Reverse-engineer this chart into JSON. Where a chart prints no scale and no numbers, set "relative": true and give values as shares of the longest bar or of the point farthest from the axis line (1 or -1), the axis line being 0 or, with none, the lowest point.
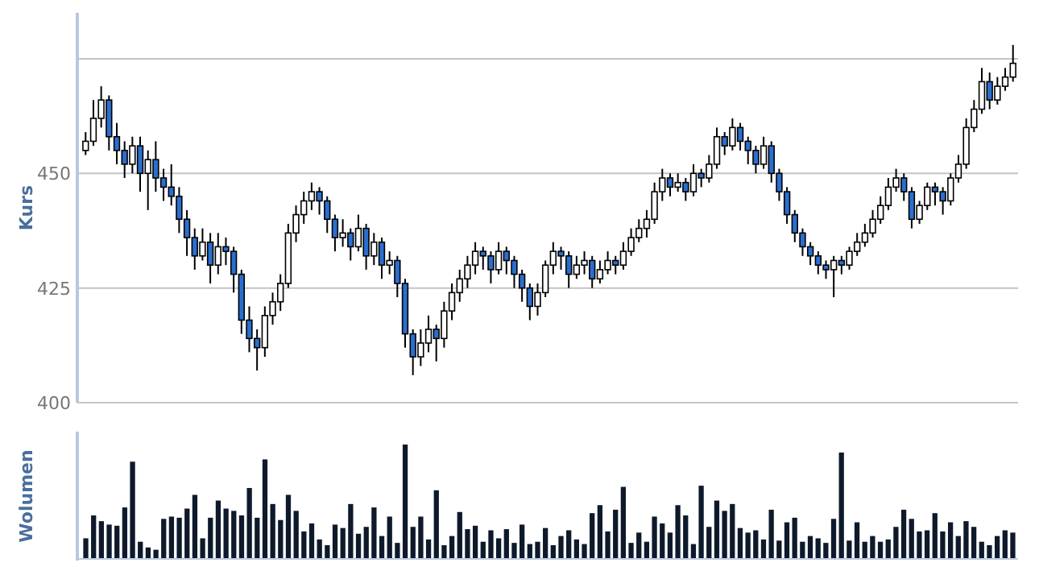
{
  "chart_data": [
    {
      "type": "candlestick",
      "ylabel": "Kurs",
      "categories": [
        null,
        null,
        null,
        null,
        null,
        null,
        null,
        null,
        null,
        null,
        null,
        null,
        null,
        null,
        null,
        null,
        null,
        null,
        null,
        null,
        null,
        null,
        null,
        null,
        null,
        null,
        null,
        null,
        null,
        null,
        null,
        null,
        null,
        null,
        null,
        null,
        null,
        null,
        null,
        null,
        null,
        null,
        null,
        null,
        null,
        null,
        null,
        null,
        null,
        null,
        null,
        null,
        null,
        null,
        null,
        null,
        null,
        null,
        null,
        null,
        null,
        null,
        null,
        null,
        null,
        null,
        null,
        null,
        null,
        null,
        null,
        null,
        null,
        null,
        null,
        null,
        null,
        null,
        null,
        null,
        null,
        null,
        null,
        null,
        null,
        null,
        null,
        null,
        null,
        null,
        null,
        null,
        null,
        null,
        null,
        null,
        null,
        null,
        null,
        null,
        null,
        null,
        null,
        null,
        null,
        null,
        null,
        null,
        null,
        null,
        null,
        null,
        null,
        null,
        null,
        null,
        null,
        null,
        null,
        null
      ],
      "colors": [
        "#ffffff",
        "#ffffff",
        "#ffffff",
        "#2a6fcf",
        "#2a6fcf",
        "#2a6fcf",
        "#ffffff",
        "#2a6fcf",
        "#ffffff",
        "#2a6fcf",
        "#2a6fcf",
        "#2a6fcf",
        "#2a6fcf",
        "#2a6fcf",
        "#2a6fcf",
        "#ffffff",
        "#2a6fcf",
        "#ffffff",
        "#2a6fcf",
        "#2a6fcf",
        "#2a6fcf",
        "#2a6fcf",
        "#2a6fcf",
        "#ffffff",
        "#ffffff",
        "#ffffff",
        "#ffffff",
        "#ffffff",
        "#ffffff",
        "#ffffff",
        "#2a6fcf",
        "#2a6fcf",
        "#2a6fcf",
        "#ffffff",
        "#2a6fcf",
        "#ffffff",
        "#2a6fcf",
        "#ffffff",
        "#2a6fcf",
        "#ffffff",
        "#2a6fcf",
        "#2a6fcf",
        "#2a6fcf",
        "#ffffff",
        "#ffffff",
        "#2a6fcf",
        "#ffffff",
        "#ffffff",
        "#ffffff",
        "#ffffff",
        "#ffffff",
        "#2a6fcf",
        "#2a6fcf",
        "#ffffff",
        "#2a6fcf",
        "#2a6fcf",
        "#2a6fcf",
        "#2a6fcf",
        "#ffffff",
        "#ffffff",
        "#ffffff",
        "#2a6fcf",
        "#2a6fcf",
        "#ffffff",
        "#ffffff",
        "#2a6fcf",
        "#ffffff",
        "#ffffff",
        "#2a6fcf",
        "#ffffff",
        "#ffffff",
        "#ffffff",
        "#ffffff",
        "#ffffff",
        "#ffffff",
        "#2a6fcf",
        "#ffffff",
        "#2a6fcf",
        "#ffffff",
        "#2a6fcf",
        "#ffffff",
        "#ffffff",
        "#2a6fcf",
        "#ffffff",
        "#2a6fcf",
        "#2a6fcf",
        "#2a6fcf",
        "#ffffff",
        "#2a6fcf",
        "#2a6fcf",
        "#2a6fcf",
        "#2a6fcf",
        "#2a6fcf",
        "#2a6fcf",
        "#2a6fcf",
        "#2a6fcf",
        "#ffffff",
        "#2a6fcf",
        "#ffffff",
        "#ffffff",
        "#ffffff",
        "#ffffff",
        "#ffffff",
        "#ffffff",
        "#ffffff",
        "#2a6fcf",
        "#2a6fcf",
        "#ffffff",
        "#ffffff",
        "#2a6fcf",
        "#2a6fcf",
        "#ffffff",
        "#ffffff",
        "#ffffff",
        "#ffffff",
        "#ffffff",
        "#2a6fcf",
        "#ffffff",
        "#ffffff",
        "#ffffff"
      ],
      "ohlc": [
        [
          455,
          459,
          454,
          457
        ],
        [
          457,
          466,
          456,
          462
        ],
        [
          462,
          469,
          460,
          466
        ],
        [
          466,
          467,
          455,
          458
        ],
        [
          458,
          461,
          452,
          455
        ],
        [
          455,
          457,
          449,
          452
        ],
        [
          452,
          458,
          450,
          456
        ],
        [
          456,
          458,
          446,
          450
        ],
        [
          450,
          455,
          442,
          453
        ],
        [
          453,
          457,
          446,
          449
        ],
        [
          449,
          451,
          444,
          447
        ],
        [
          447,
          452,
          443,
          445
        ],
        [
          445,
          447,
          437,
          440
        ],
        [
          440,
          442,
          432,
          436
        ],
        [
          436,
          438,
          429,
          432
        ],
        [
          432,
          438,
          431,
          435
        ],
        [
          435,
          437,
          426,
          430
        ],
        [
          430,
          437,
          428,
          434
        ],
        [
          434,
          436,
          430,
          433
        ],
        [
          433,
          434,
          424,
          428
        ],
        [
          428,
          429,
          415,
          418
        ],
        [
          418,
          421,
          411,
          414
        ],
        [
          414,
          416,
          407,
          412
        ],
        [
          412,
          421,
          410,
          419
        ],
        [
          419,
          424,
          417,
          422
        ],
        [
          422,
          428,
          420,
          426
        ],
        [
          426,
          439,
          425,
          437
        ],
        [
          437,
          443,
          435,
          441
        ],
        [
          441,
          446,
          439,
          444
        ],
        [
          444,
          448,
          442,
          446
        ],
        [
          446,
          447,
          441,
          444
        ],
        [
          444,
          445,
          437,
          440
        ],
        [
          440,
          441,
          433,
          436
        ],
        [
          436,
          440,
          434,
          437
        ],
        [
          437,
          438,
          431,
          434
        ],
        [
          434,
          441,
          433,
          438
        ],
        [
          438,
          439,
          429,
          432
        ],
        [
          432,
          437,
          430,
          435
        ],
        [
          435,
          436,
          427,
          430
        ],
        [
          430,
          433,
          428,
          431
        ],
        [
          431,
          432,
          423,
          426
        ],
        [
          426,
          427,
          412,
          415
        ],
        [
          415,
          416,
          406,
          410
        ],
        [
          410,
          416,
          408,
          413
        ],
        [
          413,
          419,
          411,
          416
        ],
        [
          416,
          417,
          409,
          414
        ],
        [
          414,
          422,
          412,
          420
        ],
        [
          420,
          426,
          418,
          424
        ],
        [
          424,
          429,
          422,
          427
        ],
        [
          427,
          432,
          425,
          430
        ],
        [
          430,
          435,
          428,
          433
        ],
        [
          433,
          434,
          429,
          432
        ],
        [
          432,
          433,
          426,
          429
        ],
        [
          429,
          435,
          428,
          433
        ],
        [
          433,
          434,
          428,
          431
        ],
        [
          431,
          432,
          425,
          428
        ],
        [
          428,
          429,
          422,
          425
        ],
        [
          425,
          426,
          418,
          421
        ],
        [
          421,
          426,
          419,
          424
        ],
        [
          424,
          431,
          423,
          430
        ],
        [
          430,
          435,
          428,
          433
        ],
        [
          433,
          434,
          429,
          432
        ],
        [
          432,
          433,
          425,
          428
        ],
        [
          428,
          432,
          427,
          430
        ],
        [
          430,
          433,
          428,
          431
        ],
        [
          431,
          432,
          425,
          427
        ],
        [
          427,
          431,
          426,
          429
        ],
        [
          429,
          433,
          428,
          431
        ],
        [
          431,
          432,
          428,
          430
        ],
        [
          430,
          435,
          429,
          433
        ],
        [
          433,
          438,
          432,
          436
        ],
        [
          436,
          440,
          435,
          438
        ],
        [
          438,
          442,
          436,
          440
        ],
        [
          440,
          448,
          439,
          446
        ],
        [
          446,
          451,
          444,
          449
        ],
        [
          449,
          450,
          445,
          447
        ],
        [
          447,
          450,
          446,
          448
        ],
        [
          448,
          449,
          444,
          446
        ],
        [
          446,
          452,
          445,
          450
        ],
        [
          450,
          451,
          447,
          449
        ],
        [
          449,
          454,
          448,
          452
        ],
        [
          452,
          460,
          451,
          458
        ],
        [
          458,
          459,
          454,
          456
        ],
        [
          456,
          462,
          455,
          460
        ],
        [
          460,
          461,
          455,
          457
        ],
        [
          457,
          458,
          452,
          455
        ],
        [
          455,
          456,
          450,
          452
        ],
        [
          452,
          458,
          451,
          456
        ],
        [
          456,
          457,
          448,
          450
        ],
        [
          450,
          451,
          444,
          446
        ],
        [
          446,
          447,
          439,
          441
        ],
        [
          441,
          442,
          435,
          437
        ],
        [
          437,
          438,
          432,
          434
        ],
        [
          434,
          435,
          430,
          432
        ],
        [
          432,
          433,
          428,
          430
        ],
        [
          430,
          431,
          427,
          429
        ],
        [
          429,
          432,
          423,
          431
        ],
        [
          431,
          432,
          428,
          430
        ],
        [
          430,
          434,
          429,
          433
        ],
        [
          433,
          437,
          432,
          435
        ],
        [
          435,
          439,
          434,
          437
        ],
        [
          437,
          442,
          436,
          440
        ],
        [
          440,
          445,
          439,
          443
        ],
        [
          443,
          449,
          442,
          447
        ],
        [
          447,
          451,
          446,
          449
        ],
        [
          449,
          450,
          444,
          446
        ],
        [
          446,
          447,
          438,
          440
        ],
        [
          440,
          444,
          439,
          443
        ],
        [
          443,
          448,
          442,
          447
        ],
        [
          447,
          448,
          443,
          446
        ],
        [
          446,
          447,
          441,
          444
        ],
        [
          444,
          450,
          443,
          449
        ],
        [
          449,
          454,
          448,
          452
        ],
        [
          452,
          462,
          451,
          460
        ],
        [
          460,
          466,
          459,
          464
        ],
        [
          464,
          473,
          463,
          470
        ],
        [
          470,
          472,
          464,
          466
        ],
        [
          466,
          471,
          465,
          469
        ],
        [
          469,
          473,
          468,
          471
        ],
        [
          471,
          478,
          470,
          474
        ]
      ],
      "ylim": [
        400,
        485
      ],
      "yticks": [
        400,
        425,
        450,
        {
          "value": 475,
          "label": null
        }
      ],
      "grid": "y",
      "tick_labels": "y"
    },
    {
      "type": "bar",
      "ylabel": "Wolumen",
      "relative": true,
      "color": "#0e1a2b",
      "tick_labels": false,
      "categories": [
        null,
        null,
        null,
        null,
        null,
        null,
        null,
        null,
        null,
        null,
        null,
        null,
        null,
        null,
        null,
        null,
        null,
        null,
        null,
        null,
        null,
        null,
        null,
        null,
        null,
        null,
        null,
        null,
        null,
        null,
        null,
        null,
        null,
        null,
        null,
        null,
        null,
        null,
        null,
        null,
        null,
        null,
        null,
        null,
        null,
        null,
        null,
        null,
        null,
        null,
        null,
        null,
        null,
        null,
        null,
        null,
        null,
        null,
        null,
        null,
        null,
        null,
        null,
        null,
        null,
        null,
        null,
        null,
        null,
        null,
        null,
        null,
        null,
        null,
        null,
        null,
        null,
        null,
        null,
        null,
        null,
        null,
        null,
        null,
        null,
        null,
        null,
        null,
        null,
        null,
        null,
        null,
        null,
        null,
        null,
        null,
        null,
        null,
        null,
        null,
        null,
        null,
        null,
        null,
        null,
        null,
        null,
        null,
        null,
        null,
        null,
        null,
        null,
        null,
        null,
        null,
        null,
        null,
        null,
        null
      ],
      "values": [
        0.18,
        0.38,
        0.33,
        0.3,
        0.29,
        0.45,
        0.85,
        0.15,
        0.1,
        0.08,
        0.35,
        0.37,
        0.36,
        0.44,
        0.56,
        0.18,
        0.36,
        0.51,
        0.44,
        0.42,
        0.38,
        0.62,
        0.36,
        0.87,
        0.48,
        0.34,
        0.56,
        0.42,
        0.24,
        0.31,
        0.17,
        0.12,
        0.3,
        0.27,
        0.48,
        0.22,
        0.28,
        0.45,
        0.2,
        0.37,
        0.14,
        1.0,
        0.28,
        0.37,
        0.17,
        0.6,
        0.12,
        0.2,
        0.41,
        0.26,
        0.29,
        0.15,
        0.25,
        0.18,
        0.26,
        0.14,
        0.3,
        0.13,
        0.15,
        0.27,
        0.12,
        0.2,
        0.25,
        0.17,
        0.13,
        0.4,
        0.47,
        0.24,
        0.43,
        0.63,
        0.14,
        0.23,
        0.15,
        0.37,
        0.31,
        0.23,
        0.47,
        0.38,
        0.13,
        0.64,
        0.28,
        0.51,
        0.42,
        0.48,
        0.27,
        0.23,
        0.25,
        0.17,
        0.43,
        0.16,
        0.32,
        0.36,
        0.15,
        0.2,
        0.18,
        0.14,
        0.35,
        0.93,
        0.16,
        0.32,
        0.15,
        0.2,
        0.15,
        0.17,
        0.28,
        0.43,
        0.35,
        0.24,
        0.25,
        0.4,
        0.24,
        0.32,
        0.2,
        0.33,
        0.28,
        0.15,
        0.12,
        0.2,
        0.25,
        0.23
      ]
    }
  ]
}
